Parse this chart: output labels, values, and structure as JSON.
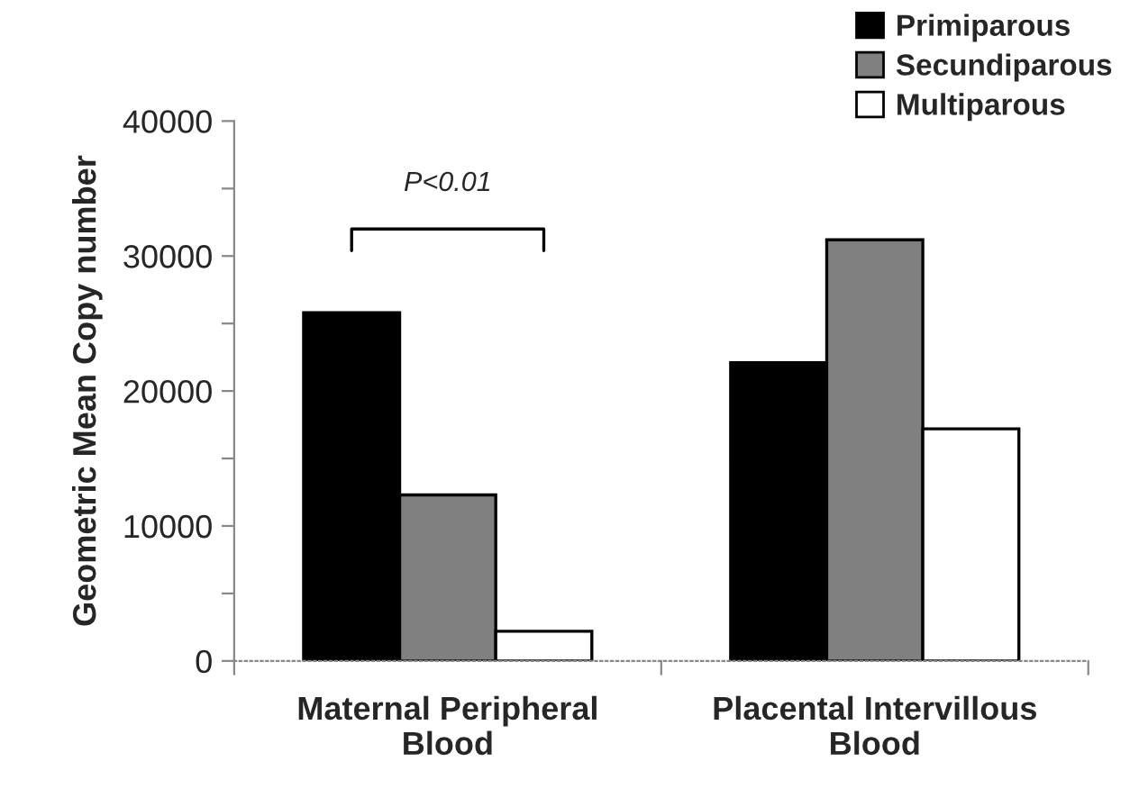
{
  "chart_data": {
    "type": "bar",
    "ylabel": "Geometric Mean Copy number",
    "categories": [
      "Maternal Peripheral\nBlood",
      "Placental Intervillous\nBlood"
    ],
    "series": [
      {
        "name": "Primiparous",
        "color": "#000000",
        "values": [
          25800,
          22100
        ]
      },
      {
        "name": "Secundiparous",
        "color": "#808080",
        "values": [
          12300,
          31200
        ]
      },
      {
        "name": "Multiparous",
        "color": "#ffffff",
        "values": [
          2200,
          17200
        ]
      }
    ],
    "ylim": [
      0,
      40000
    ],
    "yticks": [
      0,
      {
        "value": 5000,
        "label": null
      },
      10000,
      {
        "value": 15000,
        "label": null
      },
      20000,
      {
        "value": 25000,
        "label": null
      },
      30000,
      {
        "value": 35000,
        "label": null
      },
      40000
    ],
    "annotations": [
      "P<0.01"
    ],
    "grid": false,
    "legend": "top right"
  }
}
